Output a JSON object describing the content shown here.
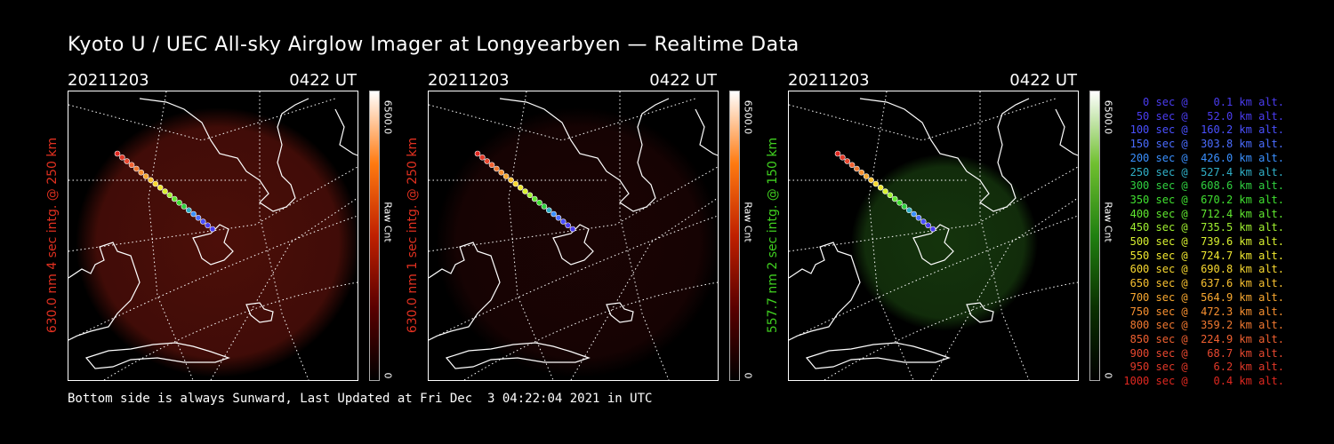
{
  "title": "Kyoto U / UEC All-sky Airglow Imager at Longyearbyen — Realtime Data",
  "panels": [
    {
      "date": "20211203",
      "time": "0422 UT",
      "ylabel": "630.0 nm 4 sec intg. @ 250 km",
      "label_color": "#e03020",
      "cbar_max": "6500.0",
      "cbar_unit": "Raw Cnt",
      "cbar_min": "0",
      "cbar_colors": [
        "#000000",
        "#5a0000",
        "#c02000",
        "#ff7a10",
        "#ffffff"
      ],
      "glow_color": "#8a1a10",
      "glow_opacity": 0.55
    },
    {
      "date": "20211203",
      "time": "0422 UT",
      "ylabel": "630.0 nm 1 sec intg. @ 250 km",
      "label_color": "#e03020",
      "cbar_max": "6500.0",
      "cbar_unit": "Raw Cnt",
      "cbar_min": "0",
      "cbar_colors": [
        "#000000",
        "#5a0000",
        "#c02000",
        "#ff7a10",
        "#ffffff"
      ],
      "glow_color": "#3a0808",
      "glow_opacity": 0.45
    },
    {
      "date": "20211203",
      "time": "0422 UT",
      "ylabel": "557.7 nm 2 sec intg. @ 150 km",
      "label_color": "#40d020",
      "cbar_max": "6500.0",
      "cbar_unit": "Raw Cnt",
      "cbar_min": "0",
      "cbar_colors": [
        "#000000",
        "#0a3000",
        "#208010",
        "#70c030",
        "#ffffff"
      ],
      "glow_color": "#1d4a12",
      "glow_opacity": 0.7
    }
  ],
  "legend": [
    {
      "text": "0 sec @    0.1 km alt.",
      "color": "#4a3cf0"
    },
    {
      "text": "50 sec @   52.0 km alt.",
      "color": "#4a3cf0"
    },
    {
      "text": "100 sec @  160.2 km alt.",
      "color": "#4a50ff"
    },
    {
      "text": "150 sec @  303.8 km alt.",
      "color": "#4a6cff"
    },
    {
      "text": "200 sec @  426.0 km alt.",
      "color": "#3a90ff"
    },
    {
      "text": "250 sec @  527.4 km alt.",
      "color": "#30b0c8"
    },
    {
      "text": "300 sec @  608.6 km alt.",
      "color": "#30d040"
    },
    {
      "text": "350 sec @  670.2 km alt.",
      "color": "#40e030"
    },
    {
      "text": "400 sec @  712.4 km alt.",
      "color": "#60e830"
    },
    {
      "text": "450 sec @  735.5 km alt.",
      "color": "#a0f030"
    },
    {
      "text": "500 sec @  739.6 km alt.",
      "color": "#d8f030"
    },
    {
      "text": "550 sec @  724.7 km alt.",
      "color": "#f0e830"
    },
    {
      "text": "600 sec @  690.8 km alt.",
      "color": "#f8d830"
    },
    {
      "text": "650 sec @  637.6 km alt.",
      "color": "#f8c030"
    },
    {
      "text": "700 sec @  564.9 km alt.",
      "color": "#f8a830"
    },
    {
      "text": "750 sec @  472.3 km alt.",
      "color": "#f89030"
    },
    {
      "text": "800 sec @  359.2 km alt.",
      "color": "#f07830"
    },
    {
      "text": "850 sec @  224.9 km alt.",
      "color": "#f06030"
    },
    {
      "text": "900 sec @   68.7 km alt.",
      "color": "#e84830"
    },
    {
      "text": "950 sec @    6.2 km alt.",
      "color": "#e03828"
    },
    {
      "text": "1000 sec @    0.4 km alt.",
      "color": "#e02820"
    }
  ],
  "footer": "Bottom side is always Sunward, Last Updated at Fri Dec  3 04:22:04 2021 in UTC"
}
